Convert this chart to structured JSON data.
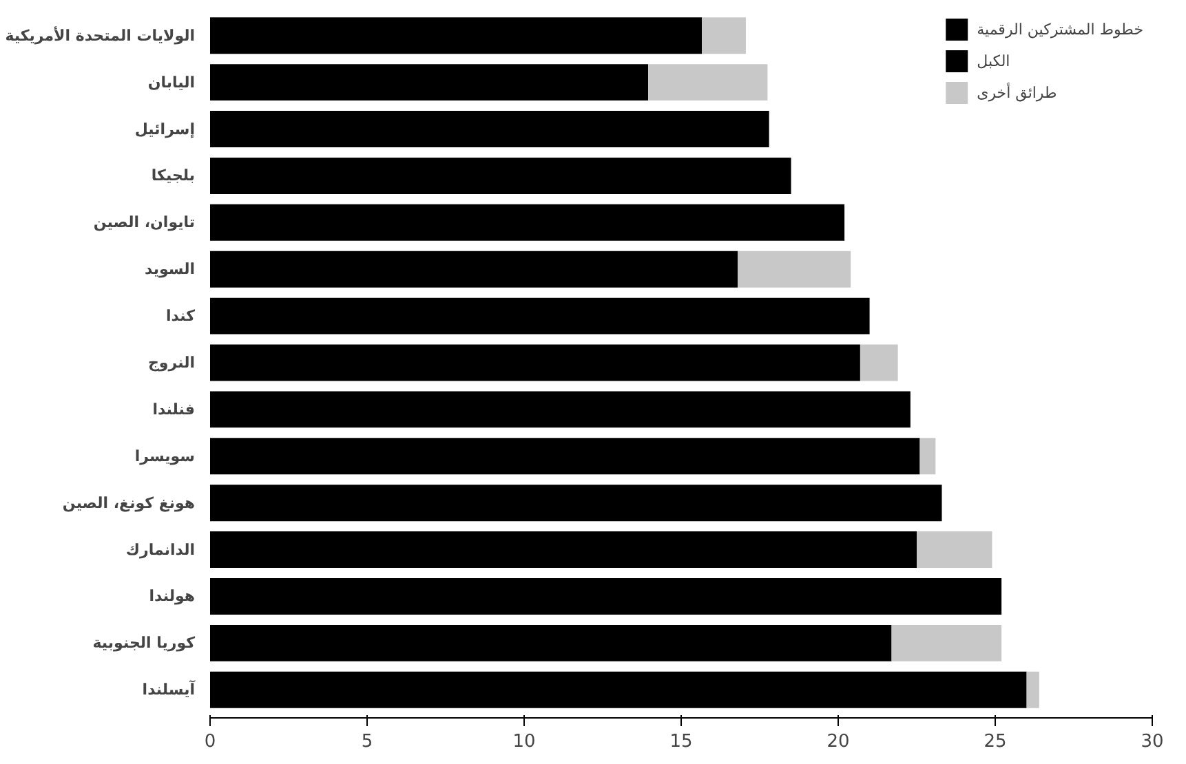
{
  "chart_data": {
    "type": "bar",
    "orientation": "horizontal",
    "stacked": true,
    "categories": [
      "الولايات المتحدة الأمريكية",
      "اليابان",
      "إسرائيل",
      "بلجيكا",
      "تايوان، الصين",
      "السويد",
      "كندا",
      "النروج",
      "فنلندا",
      "سويسرا",
      "هونغ كونغ، الصين",
      "الدانمارك",
      "هولندا",
      "كوريا الجنوبية",
      "آيسلندا"
    ],
    "series": [
      {
        "name": "خطوط المشتركين الرقمية",
        "color": "#000000",
        "values": [
          15.66,
          13.95,
          17.8,
          18.5,
          20.2,
          16.8,
          21.0,
          20.7,
          22.3,
          22.6,
          23.3,
          22.5,
          25.2,
          21.7,
          26.0
        ]
      },
      {
        "name": "الكبل",
        "color": "#000000",
        "values": [
          null,
          null,
          null,
          null,
          null,
          null,
          null,
          null,
          null,
          null,
          null,
          null,
          null,
          null,
          null
        ]
      },
      {
        "name": "طرائق أخرى",
        "color": "#c8c8c8",
        "values": [
          1.4,
          3.8,
          null,
          null,
          null,
          3.6,
          null,
          1.2,
          null,
          0.5,
          null,
          2.4,
          null,
          3.5,
          0.4
        ]
      }
    ],
    "xlim": [
      0,
      30
    ],
    "xticks": [
      0,
      5,
      10,
      15,
      20,
      25,
      30
    ],
    "grid": false,
    "legend": "top right"
  }
}
